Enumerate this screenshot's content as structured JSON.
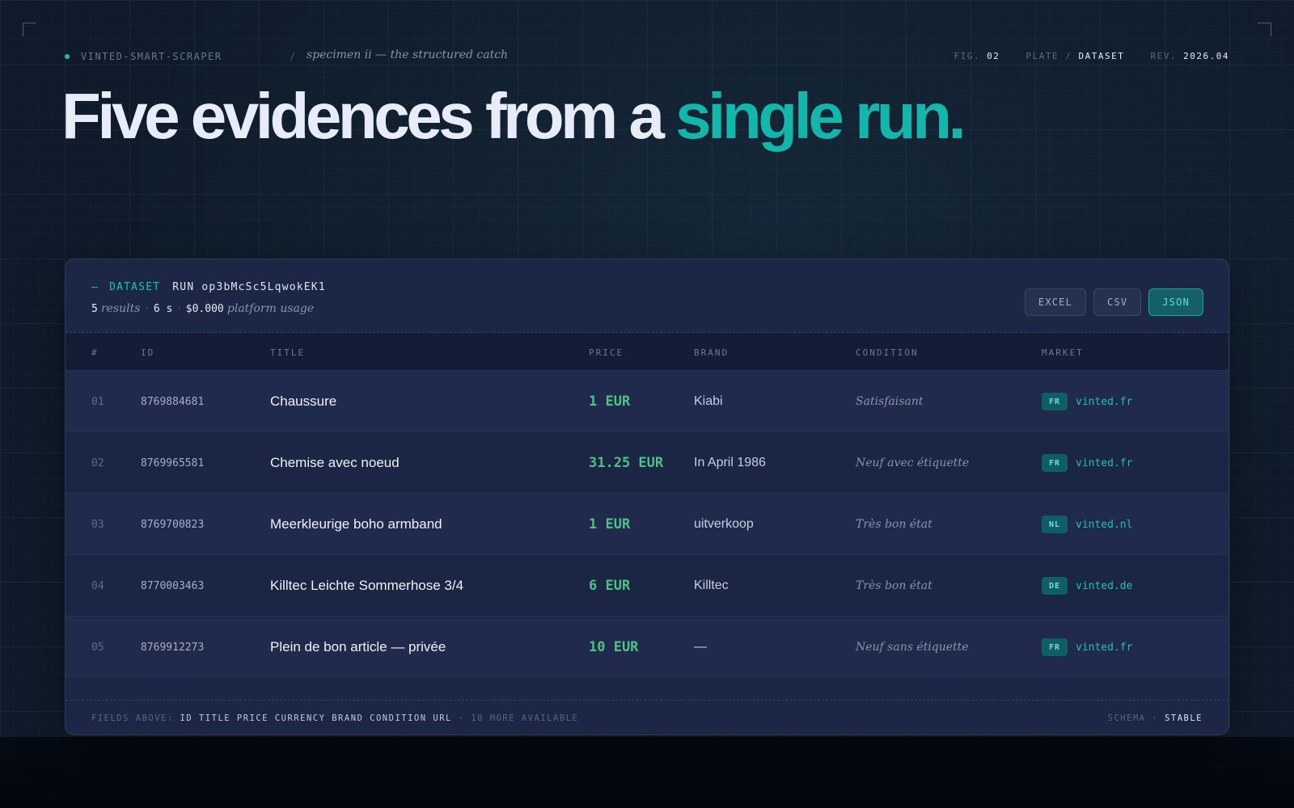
{
  "header": {
    "brand": "VINTED-SMART-SCRAPER",
    "separator": "/",
    "specimen": "specimen ii — the structured catch",
    "fig_label": "FIG.",
    "fig_value": "02",
    "plate_label": "PLATE /",
    "plate_value": "DATASET",
    "rev_label": "REV.",
    "rev_value": "2026.04"
  },
  "headline": {
    "main": "Five evidences from a ",
    "accent": "single run."
  },
  "panel": {
    "dash": "—",
    "dataset_label": "DATASET",
    "run_label": "RUN",
    "run_id": "op3bMcSc5LqwokEK1",
    "results_count": "5",
    "results_label": "results",
    "sep": "·",
    "duration": "6 s",
    "cost": "$0.000",
    "cost_label": "platform usage",
    "exports": [
      "EXCEL",
      "CSV",
      "JSON"
    ],
    "active_export": "JSON"
  },
  "table": {
    "columns": [
      "#",
      "ID",
      "TITLE",
      "PRICE",
      "BRAND",
      "CONDITION",
      "MARKET"
    ],
    "rows": [
      {
        "num": "01",
        "id": "8769884681",
        "title": "Chaussure",
        "price": "1 EUR",
        "brand": "Kiabi",
        "condition": "Satisfaisant",
        "market_code": "FR",
        "market_url": "vinted.fr"
      },
      {
        "num": "02",
        "id": "8769965581",
        "title": "Chemise avec noeud",
        "price": "31.25 EUR",
        "brand": "In April 1986",
        "condition": "Neuf avec étiquette",
        "market_code": "FR",
        "market_url": "vinted.fr"
      },
      {
        "num": "03",
        "id": "8769700823",
        "title": "Meerkleurige boho armband",
        "price": "1 EUR",
        "brand": "uitverkoop",
        "condition": "Très bon état",
        "market_code": "NL",
        "market_url": "vinted.nl"
      },
      {
        "num": "04",
        "id": "8770003463",
        "title": "Killtec Leichte Sommerhose 3/4",
        "price": "6 EUR",
        "brand": "Killtec",
        "condition": "Très bon état",
        "market_code": "DE",
        "market_url": "vinted.de"
      },
      {
        "num": "05",
        "id": "8769912273",
        "title": "Plein de bon article — privée",
        "price": "10 EUR",
        "brand": "—",
        "condition": "Neuf sans étiquette",
        "market_code": "FR",
        "market_url": "vinted.fr"
      }
    ]
  },
  "footer": {
    "fields_label": "FIELDS ABOVE:",
    "fields": "ID TITLE PRICE CURRENCY BRAND CONDITION URL",
    "more": "· 18 MORE AVAILABLE",
    "schema_label": "SCHEMA ·",
    "schema_value": "STABLE"
  },
  "colors": {
    "accent": "#13b6ab",
    "price": "#4fc184",
    "panel": "#1c2746",
    "background": "#0f1b2a"
  }
}
